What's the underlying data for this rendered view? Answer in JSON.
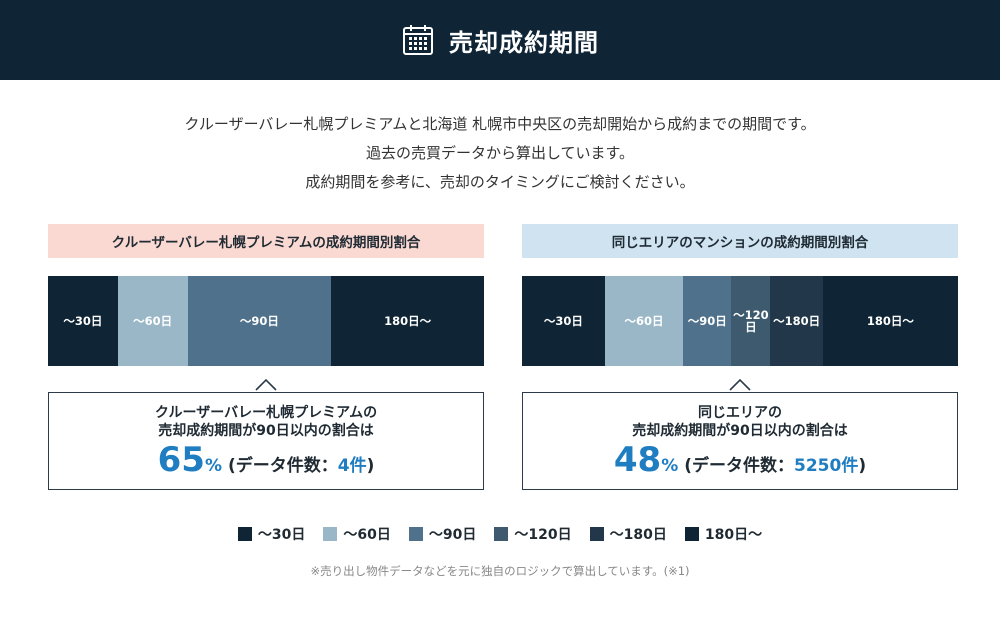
{
  "header": {
    "title": "売却成約期間",
    "icon": "calendar-icon"
  },
  "description": {
    "line1": "クルーザーバレー札幌プレミアムと北海道 札幌市中央区の売却開始から成約までの期間です。",
    "line2": "過去の売買データから算出しています。",
    "line3": "成約期間を参考に、売却のタイミングにご検討ください。"
  },
  "colors": {
    "d30": "#0f2535",
    "d60": "#9ab7c8",
    "d90": "#4f718b",
    "d120": "#3d5a6e",
    "d180": "#22384a",
    "d180plus": "#0f2535",
    "accent": "#1f7dc1"
  },
  "left": {
    "title": "クルーザーバレー札幌プレミアムの成約期間別割合",
    "segments": [
      {
        "label": "～30日",
        "share": 16,
        "color": "#0f2535"
      },
      {
        "label": "～60日",
        "share": 16,
        "color": "#9ab7c8"
      },
      {
        "label": "～90日",
        "share": 33,
        "color": "#4f718b"
      },
      {
        "label": "180日～",
        "share": 35,
        "color": "#0f2535"
      }
    ],
    "box_line1": "クルーザーバレー札幌プレミアムの",
    "box_line2": "売却成約期間が90日以内の割合は",
    "percent": "65",
    "percent_sign": "%",
    "count_prefix": "(データ件数：",
    "count": "4件",
    "count_suffix": ")"
  },
  "right": {
    "title": "同じエリアのマンションの成約期間別割合",
    "segments": [
      {
        "label": "～30日",
        "share": 19,
        "color": "#0f2535"
      },
      {
        "label": "～60日",
        "share": 18,
        "color": "#9ab7c8"
      },
      {
        "label": "～90日",
        "share": 11,
        "color": "#4f718b"
      },
      {
        "label": "～120\n日",
        "share": 9,
        "color": "#3d5a6e"
      },
      {
        "label": "～180日",
        "share": 12,
        "color": "#22384a"
      },
      {
        "label": "180日～",
        "share": 31,
        "color": "#0f2535"
      }
    ],
    "box_line1": "同じエリアの",
    "box_line2": "売却成約期間が90日以内の割合は",
    "percent": "48",
    "percent_sign": "%",
    "count_prefix": "(データ件数：",
    "count": "5250件",
    "count_suffix": ")"
  },
  "legend": [
    {
      "label": "～30日",
      "color": "#0f2535"
    },
    {
      "label": "～60日",
      "color": "#9ab7c8"
    },
    {
      "label": "～90日",
      "color": "#4f718b"
    },
    {
      "label": "～120日",
      "color": "#3d5a6e"
    },
    {
      "label": "～180日",
      "color": "#22384a"
    },
    {
      "label": "180日～",
      "color": "#0f2535"
    }
  ],
  "footnote": "※売り出し物件データなどを元に独自のロジックで算出しています。(※1)"
}
